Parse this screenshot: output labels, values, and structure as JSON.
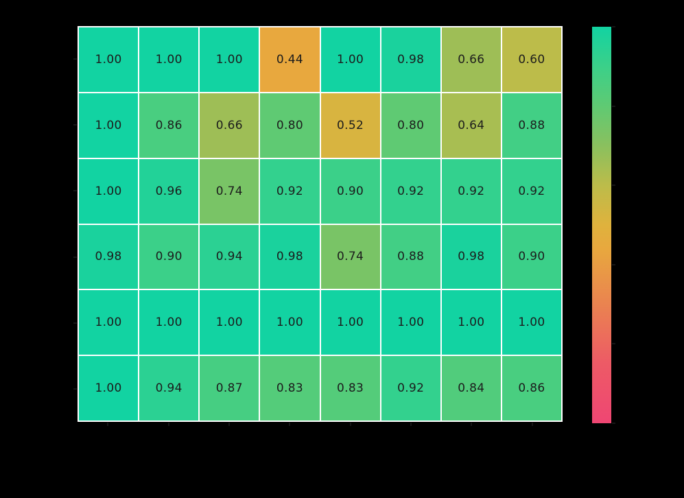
{
  "figure": {
    "background_color": "#000000",
    "gridline_color": "#ffffff",
    "annotation_color": "#1c1c1c",
    "tick_color": "#161616"
  },
  "chart_data": {
    "type": "heatmap",
    "rows": 6,
    "cols": 8,
    "values": [
      [
        1.0,
        1.0,
        1.0,
        0.44,
        1.0,
        0.98,
        0.66,
        0.6
      ],
      [
        1.0,
        0.86,
        0.66,
        0.8,
        0.52,
        0.8,
        0.64,
        0.88
      ],
      [
        1.0,
        0.96,
        0.74,
        0.92,
        0.9,
        0.92,
        0.92,
        0.92
      ],
      [
        0.98,
        0.9,
        0.94,
        0.98,
        0.74,
        0.88,
        0.98,
        0.9
      ],
      [
        1.0,
        1.0,
        1.0,
        1.0,
        1.0,
        1.0,
        1.0,
        1.0
      ],
      [
        1.0,
        0.94,
        0.87,
        0.83,
        0.83,
        0.92,
        0.84,
        0.86
      ]
    ],
    "value_format_decimals": 2,
    "value_range": [
      0,
      1
    ],
    "title": "",
    "xlabel": "",
    "ylabel": "",
    "x_tick_labels": [],
    "y_tick_labels": [],
    "grid_on": true,
    "legend_position": "right-colorbar",
    "colorbar": {
      "orientation": "vertical",
      "min_value": 0,
      "max_value": 1,
      "tick_interval": 0.2,
      "colormap_stops": [
        {
          "v": 0.0,
          "color": "#ef4673"
        },
        {
          "v": 0.15,
          "color": "#ed5a66"
        },
        {
          "v": 0.3,
          "color": "#ea8350"
        },
        {
          "v": 0.44,
          "color": "#e8a83e"
        },
        {
          "v": 0.5,
          "color": "#dfb23d"
        },
        {
          "v": 0.6,
          "color": "#bcbc4a"
        },
        {
          "v": 0.7,
          "color": "#8ac05e"
        },
        {
          "v": 0.8,
          "color": "#5fca73"
        },
        {
          "v": 0.9,
          "color": "#3bd089"
        },
        {
          "v": 1.0,
          "color": "#12d3a2"
        }
      ]
    }
  }
}
